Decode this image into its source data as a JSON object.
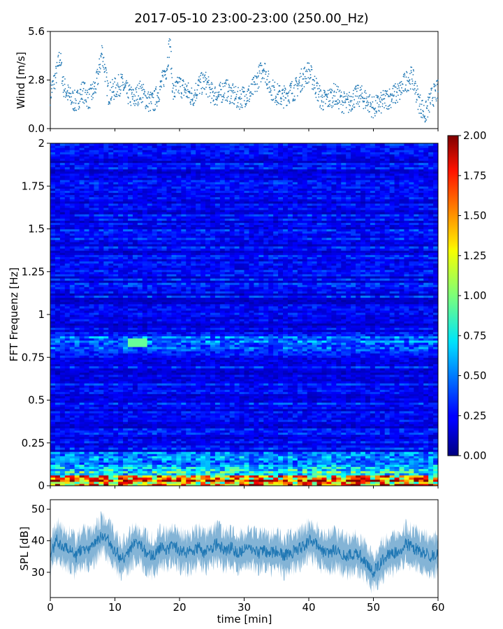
{
  "title": "2017-05-10 23:00-23:00 (250.00_Hz)",
  "chart_data": [
    {
      "type": "scatter",
      "panel": "wind",
      "ylabel": "Wind [m/s]",
      "ylim": [
        0.0,
        5.6
      ],
      "yticks": [
        "0.0",
        "2.8",
        "5.6"
      ],
      "xlim": [
        0,
        60
      ],
      "series": [
        {
          "color": "#1f77b4",
          "x": [
            0,
            1,
            1.5,
            2,
            3,
            4,
            5,
            6,
            7,
            7.5,
            8,
            9,
            10,
            11,
            12,
            13,
            14,
            15,
            16,
            17,
            18,
            18.5,
            19,
            20,
            21,
            22,
            23,
            24,
            25,
            26,
            27,
            28,
            29,
            30,
            31,
            32,
            33,
            34,
            35,
            36,
            37,
            38,
            39,
            40,
            41,
            42,
            43,
            44,
            45,
            46,
            47,
            48,
            49,
            50,
            51,
            52,
            53,
            54,
            55,
            56,
            57,
            58,
            59,
            60
          ],
          "y": [
            2.0,
            3.2,
            4.2,
            2.5,
            1.8,
            1.5,
            2.2,
            1.7,
            2.4,
            3.2,
            4.5,
            2.0,
            2.3,
            2.6,
            2.0,
            1.7,
            2.2,
            1.6,
            1.5,
            2.3,
            3.5,
            5.0,
            2.0,
            2.5,
            2.2,
            1.8,
            2.5,
            2.7,
            2.0,
            1.9,
            2.3,
            2.0,
            1.7,
            1.9,
            2.0,
            2.8,
            3.6,
            2.4,
            2.0,
            1.8,
            2.1,
            2.3,
            2.9,
            3.3,
            2.5,
            1.6,
            1.7,
            2.0,
            1.6,
            1.4,
            1.8,
            1.9,
            1.6,
            1.2,
            1.4,
            1.7,
            1.9,
            2.1,
            2.7,
            3.0,
            1.6,
            0.8,
            1.8,
            2.2
          ]
        }
      ]
    },
    {
      "type": "heatmap",
      "panel": "spectrogram",
      "ylabel": "FFT Frequenz [Hz]",
      "ylim": [
        0,
        2
      ],
      "yticks": [
        "0",
        "0.25",
        "0.5",
        "0.75",
        "1",
        "1.25",
        "1.5",
        "1.75",
        "2"
      ],
      "xlim": [
        0,
        60
      ],
      "colorbar": {
        "range": [
          0.0,
          2.0
        ],
        "ticks": [
          "0.00",
          "0.25",
          "0.50",
          "0.75",
          "1.00",
          "1.25",
          "1.50",
          "1.75",
          "2.00"
        ],
        "colormap": "jet"
      }
    },
    {
      "type": "line",
      "panel": "spl",
      "ylabel": "SPL [dB]",
      "xlabel": "time [min]",
      "xlim": [
        0,
        60
      ],
      "ylim": [
        22,
        53
      ],
      "yticks": [
        "30",
        "40",
        "50"
      ],
      "xticks": [
        "0",
        "10",
        "20",
        "30",
        "40",
        "50",
        "60"
      ],
      "series": [
        {
          "color": "#1f77b4",
          "x": [
            0,
            1,
            2,
            3,
            4,
            5,
            6,
            7,
            8,
            9,
            10,
            11,
            12,
            13,
            14,
            15,
            16,
            17,
            18,
            19,
            20,
            21,
            22,
            23,
            24,
            25,
            26,
            27,
            28,
            29,
            30,
            31,
            32,
            33,
            34,
            35,
            36,
            37,
            38,
            39,
            40,
            41,
            42,
            43,
            44,
            45,
            46,
            47,
            48,
            49,
            50,
            51,
            52,
            53,
            54,
            55,
            56,
            57,
            58,
            59,
            60
          ],
          "y": [
            36,
            40,
            38,
            37,
            35,
            38,
            37,
            39,
            42,
            40,
            37,
            34,
            36,
            39,
            38,
            36,
            35,
            38,
            37,
            39,
            37,
            36,
            37,
            38,
            36,
            38,
            39,
            37,
            38,
            36,
            37,
            38,
            36,
            37,
            36,
            37,
            35,
            36,
            37,
            38,
            40,
            39,
            37,
            36,
            37,
            36,
            35,
            36,
            35,
            33,
            30,
            33,
            35,
            36,
            37,
            39,
            38,
            37,
            36,
            35,
            36
          ]
        }
      ]
    }
  ]
}
